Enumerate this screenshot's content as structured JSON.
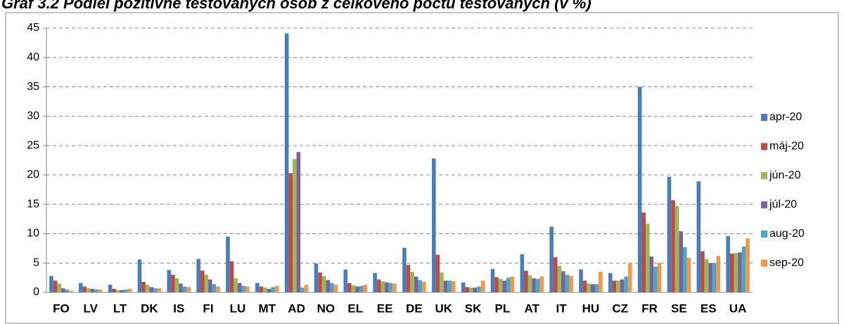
{
  "chart_data": {
    "type": "bar",
    "title": "Graf 3.2 Podiel pozitívne testovaných osôb z celkového počtu testovaných (v %)",
    "categories": [
      "FO",
      "LV",
      "LT",
      "DK",
      "IS",
      "FI",
      "LU",
      "MT",
      "AD",
      "NO",
      "EL",
      "EE",
      "DE",
      "UK",
      "SK",
      "PL",
      "AT",
      "IT",
      "HU",
      "CZ",
      "FR",
      "SE",
      "ES",
      "UA"
    ],
    "series": [
      {
        "name": "apr-20",
        "color": "#4a7ebb",
        "values": [
          2.8,
          1.6,
          1.3,
          5.6,
          3.8,
          5.7,
          9.5,
          1.6,
          44.1,
          4.9,
          3.9,
          3.3,
          7.6,
          22.8,
          1.7,
          4.0,
          6.5,
          11.2,
          3.9,
          3.3,
          35.0,
          19.7,
          18.9,
          9.6
        ]
      },
      {
        "name": "máj-20",
        "color": "#be4b48",
        "values": [
          2.0,
          1.0,
          0.6,
          1.8,
          3.0,
          3.7,
          5.3,
          1.0,
          20.3,
          3.4,
          1.6,
          2.2,
          4.7,
          6.4,
          0.9,
          2.6,
          3.7,
          6.0,
          2.0,
          2.0,
          13.6,
          15.7,
          7.0,
          6.6
        ]
      },
      {
        "name": "jún-20",
        "color": "#98b954",
        "values": [
          1.5,
          0.7,
          0.4,
          1.3,
          2.4,
          3.0,
          2.4,
          0.8,
          22.7,
          2.8,
          1.2,
          1.9,
          3.5,
          3.4,
          0.8,
          2.3,
          2.9,
          4.5,
          1.5,
          2.0,
          11.7,
          14.7,
          5.7,
          6.7
        ]
      },
      {
        "name": "júl-20",
        "color": "#7d60a0",
        "values": [
          0.7,
          0.6,
          0.4,
          0.9,
          1.5,
          2.2,
          1.6,
          0.6,
          23.9,
          2.1,
          1.0,
          1.7,
          2.7,
          2.0,
          0.8,
          2.0,
          2.4,
          3.6,
          1.4,
          2.2,
          6.1,
          10.4,
          5.0,
          6.8
        ]
      },
      {
        "name": "aug-20",
        "color": "#46aac5",
        "values": [
          0.5,
          0.5,
          0.5,
          0.7,
          1.0,
          1.4,
          1.1,
          0.9,
          0.8,
          1.6,
          1.1,
          1.6,
          2.1,
          2.0,
          1.0,
          2.5,
          2.3,
          3.0,
          1.4,
          2.7,
          4.4,
          7.7,
          5.0,
          7.8
        ]
      },
      {
        "name": "sep-20",
        "color": "#f79646",
        "values": [
          0.3,
          0.5,
          0.6,
          0.7,
          0.9,
          1.0,
          1.0,
          1.1,
          1.3,
          1.3,
          1.3,
          1.5,
          1.8,
          1.9,
          2.0,
          2.7,
          2.7,
          2.8,
          3.5,
          4.9,
          5.0,
          5.9,
          6.2,
          9.2
        ]
      }
    ],
    "ylim": [
      0,
      45
    ],
    "yticks": [
      0,
      5,
      10,
      15,
      20,
      25,
      30,
      35,
      40,
      45
    ],
    "grid": true,
    "legend": "right"
  }
}
